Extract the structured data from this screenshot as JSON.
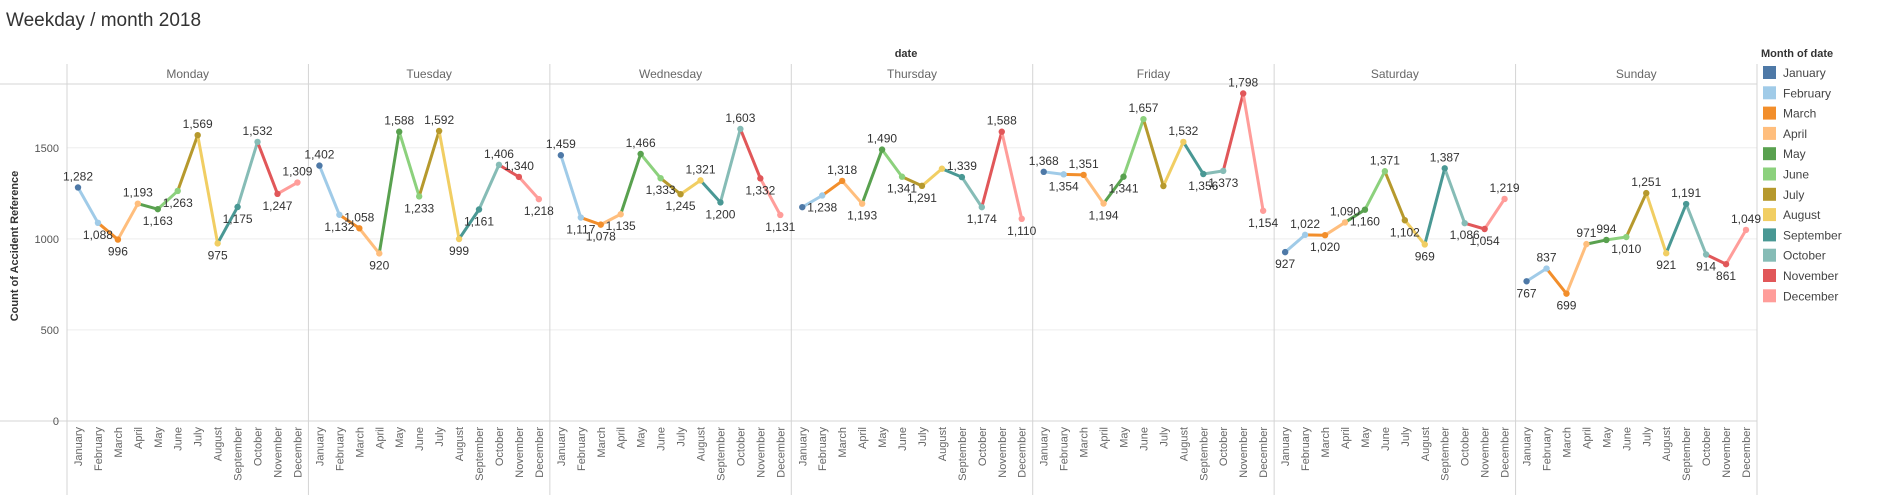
{
  "title": "Weekday / month 2018",
  "chart_data": {
    "type": "line",
    "title": "Weekday / month 2018",
    "column_header": "date",
    "ylabel": "Count of Accident Reference",
    "yticks": [
      0,
      500,
      1000,
      1500
    ],
    "ylim": [
      0,
      1850
    ],
    "grid": true,
    "legend": {
      "title": "Month of date",
      "placement": "right",
      "items": [
        {
          "label": "January",
          "color": "#4e79a7"
        },
        {
          "label": "February",
          "color": "#a0cbe8"
        },
        {
          "label": "March",
          "color": "#f28e2b"
        },
        {
          "label": "April",
          "color": "#ffbe7d"
        },
        {
          "label": "May",
          "color": "#59a14f"
        },
        {
          "label": "June",
          "color": "#8cd17d"
        },
        {
          "label": "July",
          "color": "#b6992d"
        },
        {
          "label": "August",
          "color": "#f1ce63"
        },
        {
          "label": "September",
          "color": "#499894"
        },
        {
          "label": "October",
          "color": "#86bcb6"
        },
        {
          "label": "November",
          "color": "#e15759"
        },
        {
          "label": "December",
          "color": "#ff9d9a"
        }
      ]
    },
    "categories": [
      "January",
      "February",
      "March",
      "April",
      "May",
      "June",
      "July",
      "August",
      "September",
      "October",
      "November",
      "December"
    ],
    "panes": [
      {
        "name": "Monday",
        "values": [
          1282,
          1088,
          996,
          1193,
          1163,
          1263,
          1569,
          975,
          1175,
          1532,
          1247,
          1309
        ],
        "labels": [
          "1,282",
          "1,088",
          "996",
          "1,193",
          "1,163",
          "1,263",
          "1,569",
          "975",
          "1,175",
          "1,532",
          "1,247",
          "1,309"
        ]
      },
      {
        "name": "Tuesday",
        "values": [
          1402,
          1132,
          1058,
          920,
          1588,
          1233,
          1592,
          999,
          1161,
          1406,
          1340,
          1218
        ],
        "labels": [
          "1,402",
          "1,132",
          "1,058",
          "920",
          "1,588",
          "1,233",
          "1,592",
          "999",
          "1,161",
          "1,406",
          "1,340",
          "1,218"
        ]
      },
      {
        "name": "Wednesday",
        "values": [
          1459,
          1117,
          1078,
          1135,
          1466,
          1333,
          1245,
          1321,
          1200,
          1603,
          1332,
          1131
        ],
        "labels": [
          "1,459",
          "1,117",
          "1,078",
          "1,135",
          "1,466",
          "1,333",
          "1,245",
          "1,321",
          "1,200",
          "1,603",
          "1,332",
          "1,131"
        ]
      },
      {
        "name": "Thursday",
        "values": [
          1174,
          1238,
          1318,
          1193,
          1490,
          1341,
          1291,
          1385,
          1339,
          1174,
          1588,
          1110
        ],
        "labels": [
          "",
          "1,238",
          "1,318",
          "1,193",
          "1,490",
          "1,341",
          "1,291",
          "",
          "1,339",
          "1,174",
          "1,588",
          "1,110"
        ]
      },
      {
        "name": "Friday",
        "values": [
          1368,
          1354,
          1351,
          1194,
          1341,
          1657,
          1290,
          1532,
          1356,
          1373,
          1798,
          1154
        ],
        "labels": [
          "1,368",
          "1,354",
          "1,351",
          "1,194",
          "1,341",
          "1,657",
          "",
          "1,532",
          "1,356",
          "1,373",
          "1,798",
          "1,154"
        ]
      },
      {
        "name": "Saturday",
        "values": [
          927,
          1022,
          1020,
          1090,
          1160,
          1371,
          1102,
          969,
          1387,
          1086,
          1054,
          1219
        ],
        "labels": [
          "927",
          "1,022",
          "1,020",
          "1,090",
          "1,160",
          "1,371",
          "1,102",
          "969",
          "1,387",
          "1,086",
          "1,054",
          "1,219"
        ]
      },
      {
        "name": "Sunday",
        "values": [
          767,
          837,
          699,
          971,
          994,
          1010,
          1251,
          921,
          1191,
          914,
          861,
          1049
        ],
        "labels": [
          "767",
          "837",
          "699",
          "971",
          "994",
          "1,010",
          "1,251",
          "921",
          "1,191",
          "914",
          "861",
          "1,049"
        ]
      }
    ]
  }
}
